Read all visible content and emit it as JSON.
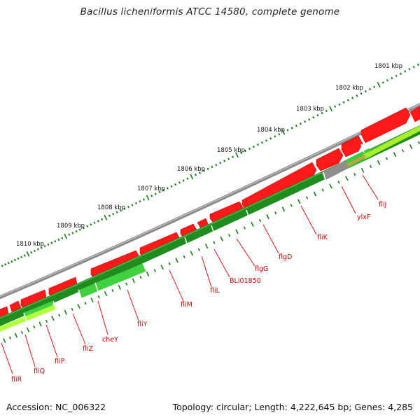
{
  "title": "Bacillus licheniformis ATCC 14580, complete genome",
  "footer": {
    "accession_label": "Accession:",
    "accession": "NC_006322",
    "topology_label": "Topology:",
    "topology": "circular;",
    "length_label": "Length:",
    "length": "4,222,645 bp;",
    "genes_label": "Genes:",
    "genes": "4,285"
  },
  "scale_labels": [
    "1801 kbp",
    "1802 kbp",
    "1803 kbp",
    "1804 kbp",
    "1805 kbp",
    "1806 kbp",
    "1807 kbp",
    "1808 kbp",
    "1809 kbp",
    "1810 kbp"
  ],
  "gene_labels": [
    "fliJ",
    "ylxF",
    "fliK",
    "flgD",
    "flgG",
    "BLi01850",
    "fliL",
    "fliM",
    "fliY",
    "cheY",
    "fliZ",
    "fliP",
    "fliQ",
    "fliR"
  ],
  "colors": {
    "backbone": "#8c8c8c",
    "forward_cds": "#ff0000",
    "reverse_dark": "#1e8c1e",
    "reverse_light": "#4cd64c",
    "reverse_yellow": "#aaee33",
    "gray_feature": "#999999",
    "scale_tick": "#1a7a1a",
    "gene_label": "#cc0000"
  }
}
